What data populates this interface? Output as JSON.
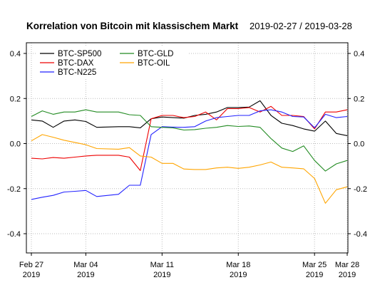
{
  "chart_data": {
    "type": "line",
    "title": "Korrelation von Bitcoin mit klassischem Markt",
    "date_range": "2019-02-27 / 2019-03-28",
    "xlabel": "",
    "ylabel": "",
    "xlim": [
      "2019-02-27",
      "2019-03-28"
    ],
    "ylim": [
      -0.48,
      0.48
    ],
    "y_ticks": [
      "0.4",
      "0.2",
      "0.0",
      "-0.2",
      "-0.4"
    ],
    "x_ticks": [
      {
        "date": "2019-02-27",
        "line1": "Feb 27",
        "line2": "2019"
      },
      {
        "date": "2019-03-04",
        "line1": "Mar 04",
        "line2": "2019"
      },
      {
        "date": "2019-03-11",
        "line1": "Mar 11",
        "line2": "2019"
      },
      {
        "date": "2019-03-18",
        "line1": "Mar 18",
        "line2": "2019"
      },
      {
        "date": "2019-03-25",
        "line1": "Mar 25",
        "line2": "2019"
      },
      {
        "date": "2019-03-28",
        "line1": "Mar 28",
        "line2": "2019"
      }
    ],
    "grid": true,
    "legend": "top-left",
    "series": [
      {
        "name": "BTC-SP500",
        "color": "#000000",
        "points": [
          [
            "2019-02-27",
            0.105
          ],
          [
            "2019-02-28",
            0.1
          ],
          [
            "2019-03-01",
            0.072
          ],
          [
            "2019-03-02",
            0.1
          ],
          [
            "2019-03-03",
            0.105
          ],
          [
            "2019-03-04",
            0.098
          ],
          [
            "2019-03-05",
            0.072
          ],
          [
            "2019-03-07",
            0.075
          ],
          [
            "2019-03-08",
            0.075
          ],
          [
            "2019-03-09",
            0.07
          ],
          [
            "2019-03-10",
            0.11
          ],
          [
            "2019-03-11",
            0.118
          ],
          [
            "2019-03-12",
            0.115
          ],
          [
            "2019-03-13",
            0.113
          ],
          [
            "2019-03-14",
            0.125
          ],
          [
            "2019-03-15",
            0.13
          ],
          [
            "2019-03-16",
            0.14
          ],
          [
            "2019-03-17",
            0.16
          ],
          [
            "2019-03-18",
            0.16
          ],
          [
            "2019-03-19",
            0.162
          ],
          [
            "2019-03-20",
            0.19
          ],
          [
            "2019-03-21",
            0.125
          ],
          [
            "2019-03-22",
            0.09
          ],
          [
            "2019-03-23",
            0.08
          ],
          [
            "2019-03-24",
            0.065
          ],
          [
            "2019-03-25",
            0.055
          ],
          [
            "2019-03-26",
            0.1
          ],
          [
            "2019-03-27",
            0.045
          ],
          [
            "2019-03-28",
            0.035
          ]
        ]
      },
      {
        "name": "BTC-DAX",
        "color": "#ee0000",
        "points": [
          [
            "2019-02-27",
            -0.065
          ],
          [
            "2019-02-28",
            -0.068
          ],
          [
            "2019-03-01",
            -0.062
          ],
          [
            "2019-03-02",
            -0.065
          ],
          [
            "2019-03-03",
            -0.06
          ],
          [
            "2019-03-04",
            -0.055
          ],
          [
            "2019-03-05",
            -0.052
          ],
          [
            "2019-03-07",
            -0.052
          ],
          [
            "2019-03-08",
            -0.06
          ],
          [
            "2019-03-09",
            -0.12
          ],
          [
            "2019-03-10",
            0.11
          ],
          [
            "2019-03-11",
            0.125
          ],
          [
            "2019-03-12",
            0.125
          ],
          [
            "2019-03-13",
            0.115
          ],
          [
            "2019-03-14",
            0.12
          ],
          [
            "2019-03-15",
            0.14
          ],
          [
            "2019-03-16",
            0.105
          ],
          [
            "2019-03-17",
            0.155
          ],
          [
            "2019-03-18",
            0.155
          ],
          [
            "2019-03-19",
            0.16
          ],
          [
            "2019-03-20",
            0.14
          ],
          [
            "2019-03-21",
            0.165
          ],
          [
            "2019-03-22",
            0.125
          ],
          [
            "2019-03-23",
            0.125
          ],
          [
            "2019-03-24",
            0.12
          ],
          [
            "2019-03-25",
            0.065
          ],
          [
            "2019-03-26",
            0.14
          ],
          [
            "2019-03-27",
            0.14
          ],
          [
            "2019-03-28",
            0.15
          ]
        ]
      },
      {
        "name": "BTC-N225",
        "color": "#2222ff",
        "points": [
          [
            "2019-02-27",
            -0.248
          ],
          [
            "2019-02-28",
            -0.238
          ],
          [
            "2019-03-01",
            -0.23
          ],
          [
            "2019-03-02",
            -0.215
          ],
          [
            "2019-03-03",
            -0.212
          ],
          [
            "2019-03-04",
            -0.208
          ],
          [
            "2019-03-05",
            -0.235
          ],
          [
            "2019-03-07",
            -0.225
          ],
          [
            "2019-03-08",
            -0.185
          ],
          [
            "2019-03-09",
            -0.185
          ],
          [
            "2019-03-10",
            0.04
          ],
          [
            "2019-03-11",
            0.075
          ],
          [
            "2019-03-12",
            0.073
          ],
          [
            "2019-03-13",
            0.072
          ],
          [
            "2019-03-14",
            0.075
          ],
          [
            "2019-03-15",
            0.1
          ],
          [
            "2019-03-16",
            0.115
          ],
          [
            "2019-03-17",
            0.12
          ],
          [
            "2019-03-18",
            0.125
          ],
          [
            "2019-03-19",
            0.125
          ],
          [
            "2019-03-20",
            0.145
          ],
          [
            "2019-03-21",
            0.15
          ],
          [
            "2019-03-22",
            0.14
          ],
          [
            "2019-03-23",
            0.12
          ],
          [
            "2019-03-24",
            0.118
          ],
          [
            "2019-03-25",
            0.07
          ],
          [
            "2019-03-26",
            0.13
          ],
          [
            "2019-03-27",
            0.115
          ],
          [
            "2019-03-28",
            0.12
          ]
        ]
      },
      {
        "name": "BTC-GLD",
        "color": "#228B22",
        "points": [
          [
            "2019-02-27",
            0.12
          ],
          [
            "2019-02-28",
            0.145
          ],
          [
            "2019-03-01",
            0.13
          ],
          [
            "2019-03-02",
            0.14
          ],
          [
            "2019-03-03",
            0.14
          ],
          [
            "2019-03-04",
            0.15
          ],
          [
            "2019-03-05",
            0.14
          ],
          [
            "2019-03-07",
            0.14
          ],
          [
            "2019-03-08",
            0.128
          ],
          [
            "2019-03-09",
            0.125
          ],
          [
            "2019-03-10",
            0.075
          ],
          [
            "2019-03-11",
            0.072
          ],
          [
            "2019-03-12",
            0.07
          ],
          [
            "2019-03-13",
            0.06
          ],
          [
            "2019-03-14",
            0.062
          ],
          [
            "2019-03-15",
            0.068
          ],
          [
            "2019-03-16",
            0.072
          ],
          [
            "2019-03-17",
            0.08
          ],
          [
            "2019-03-18",
            0.076
          ],
          [
            "2019-03-19",
            0.078
          ],
          [
            "2019-03-20",
            0.072
          ],
          [
            "2019-03-21",
            0.022
          ],
          [
            "2019-03-22",
            -0.02
          ],
          [
            "2019-03-23",
            -0.035
          ],
          [
            "2019-03-24",
            -0.01
          ],
          [
            "2019-03-25",
            -0.075
          ],
          [
            "2019-03-26",
            -0.122
          ],
          [
            "2019-03-27",
            -0.09
          ],
          [
            "2019-03-28",
            -0.075
          ]
        ]
      },
      {
        "name": "BTC-OIL",
        "color": "#ffa500",
        "points": [
          [
            "2019-02-27",
            0.012
          ],
          [
            "2019-02-28",
            0.04
          ],
          [
            "2019-03-01",
            0.028
          ],
          [
            "2019-03-02",
            0.015
          ],
          [
            "2019-03-03",
            0.005
          ],
          [
            "2019-03-04",
            -0.005
          ],
          [
            "2019-03-05",
            -0.022
          ],
          [
            "2019-03-07",
            -0.025
          ],
          [
            "2019-03-08",
            -0.018
          ],
          [
            "2019-03-09",
            -0.055
          ],
          [
            "2019-03-10",
            -0.06
          ],
          [
            "2019-03-11",
            -0.088
          ],
          [
            "2019-03-12",
            -0.088
          ],
          [
            "2019-03-13",
            -0.113
          ],
          [
            "2019-03-14",
            -0.115
          ],
          [
            "2019-03-15",
            -0.115
          ],
          [
            "2019-03-16",
            -0.108
          ],
          [
            "2019-03-17",
            -0.105
          ],
          [
            "2019-03-18",
            -0.11
          ],
          [
            "2019-03-19",
            -0.105
          ],
          [
            "2019-03-20",
            -0.095
          ],
          [
            "2019-03-21",
            -0.082
          ],
          [
            "2019-03-22",
            -0.105
          ],
          [
            "2019-03-23",
            -0.108
          ],
          [
            "2019-03-24",
            -0.112
          ],
          [
            "2019-03-25",
            -0.155
          ],
          [
            "2019-03-26",
            -0.265
          ],
          [
            "2019-03-27",
            -0.205
          ],
          [
            "2019-03-28",
            -0.192
          ]
        ]
      }
    ]
  }
}
